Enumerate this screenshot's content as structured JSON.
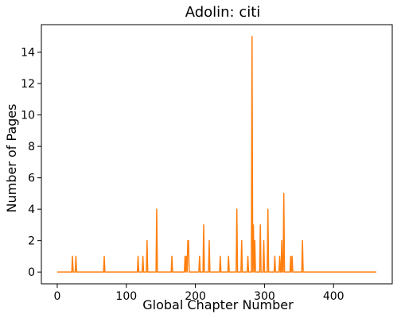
{
  "chart_data": {
    "type": "line",
    "title": "Adolin: citi",
    "xlabel": "Global Chapter Number",
    "ylabel": "Number of Pages",
    "xlim": [
      -23,
      485
    ],
    "ylim": [
      -0.75,
      15.75
    ],
    "xticks": [
      0,
      100,
      200,
      300,
      400
    ],
    "yticks": [
      0,
      2,
      4,
      6,
      8,
      10,
      12,
      14
    ],
    "grid": false,
    "series_color": "#ff7f0e",
    "x_range": [
      0,
      462
    ],
    "series": [
      {
        "points": [
          [
            22,
            1
          ],
          [
            27,
            1
          ],
          [
            68,
            1
          ],
          [
            117,
            1
          ],
          [
            124,
            1
          ],
          [
            130,
            2
          ],
          [
            144,
            4
          ],
          [
            166,
            1
          ],
          [
            185,
            1
          ],
          [
            187,
            1
          ],
          [
            189,
            2
          ],
          [
            190,
            2
          ],
          [
            206,
            1
          ],
          [
            212,
            3
          ],
          [
            220,
            2
          ],
          [
            236,
            1
          ],
          [
            248,
            1
          ],
          [
            260,
            4
          ],
          [
            267,
            2
          ],
          [
            276,
            1
          ],
          [
            282,
            15
          ],
          [
            284,
            3
          ],
          [
            286,
            2
          ],
          [
            294,
            3
          ],
          [
            299,
            2
          ],
          [
            305,
            4
          ],
          [
            315,
            1
          ],
          [
            322,
            1
          ],
          [
            325,
            2
          ],
          [
            328,
            5
          ],
          [
            338,
            1
          ],
          [
            340,
            1
          ],
          [
            355,
            2
          ]
        ]
      }
    ]
  }
}
